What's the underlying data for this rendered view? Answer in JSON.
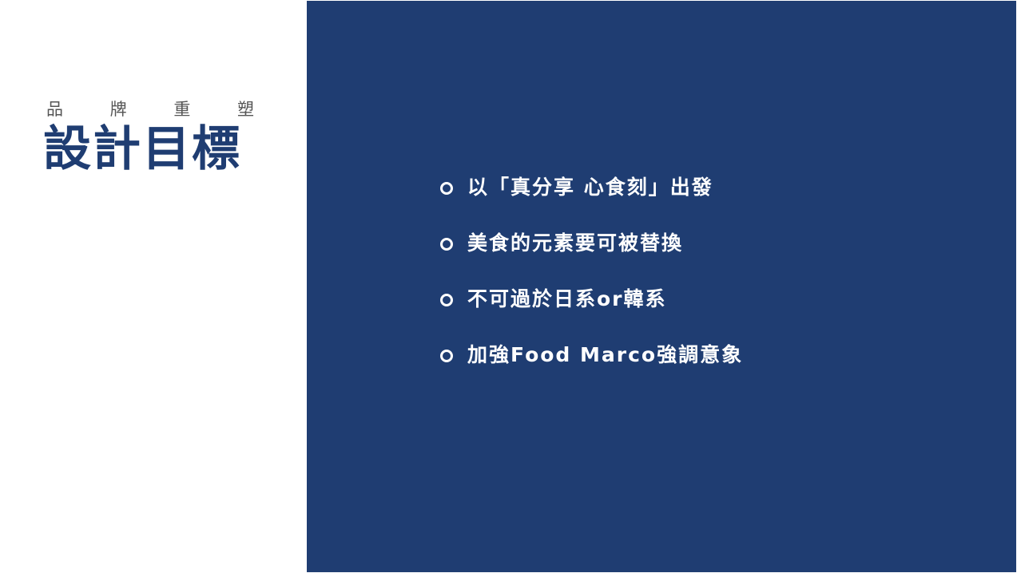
{
  "slide": {
    "subtitle_chars": [
      "品",
      "牌",
      "重",
      "塑"
    ],
    "title": "設計目標",
    "goals": [
      "以「真分享 心食刻」出發",
      "美食的元素要可被替換",
      "不可過於日系or韓系",
      "加強Food Marco強調意象"
    ],
    "colors": {
      "primary_navy": "#1f3d72",
      "subtitle_gray": "#555555",
      "background_white": "#ffffff",
      "bullet_text_white": "#ffffff"
    },
    "icons": {
      "bullet": "hollow-circle-icon"
    }
  }
}
